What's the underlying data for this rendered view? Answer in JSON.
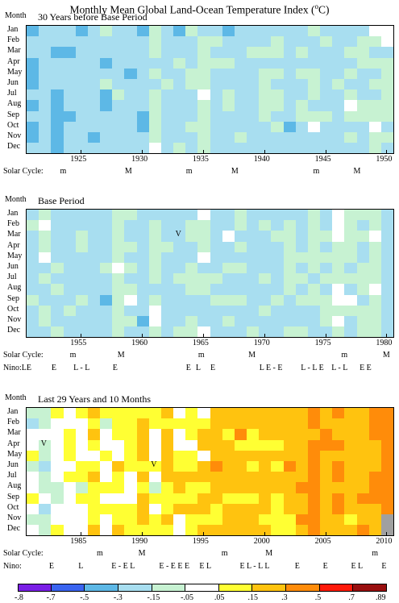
{
  "title_pre": "Monthly Mean Global Land-Ocean Temperature Index (",
  "title_sup": "o",
  "title_post": "C)",
  "month_header": "Month",
  "chart_data": [
    {
      "type": "heatmap",
      "title": "30 Years before Base Period",
      "rows": [
        "Jan",
        "Feb",
        "Mar",
        "Apr",
        "May",
        "Jun",
        "Jul",
        "Aug",
        "Sep",
        "Oct",
        "Nov",
        "Dec"
      ],
      "x_range": [
        1921,
        1950
      ],
      "xticks": [
        "1925",
        "1930",
        "1935",
        "1940",
        "1945",
        "1950"
      ],
      "annotation_rows": [
        {
          "label": "Solar Cycle:",
          "marks": [
            {
              "x": 1923.5,
              "t": "m"
            },
            {
              "x": 1928.8,
              "t": "M"
            },
            {
              "x": 1933.8,
              "t": "m"
            },
            {
              "x": 1937.5,
              "t": "M"
            },
            {
              "x": 1944.2,
              "t": "m"
            },
            {
              "x": 1947.5,
              "t": "M"
            }
          ]
        }
      ],
      "cell_markers": [],
      "seed": 11,
      "offset": -2.1,
      "trend": 1.1,
      "noise": 0.75
    },
    {
      "type": "heatmap",
      "title": "Base Period",
      "rows": [
        "Jan",
        "Feb",
        "Mar",
        "Apr",
        "May",
        "Jun",
        "Jul",
        "Aug",
        "Sep",
        "Oct",
        "Nov",
        "Dec"
      ],
      "x_range": [
        1951,
        1980
      ],
      "xticks": [
        "1955",
        "1960",
        "1965",
        "1970",
        "1975",
        "1980"
      ],
      "annotation_rows": [
        {
          "label": "Solar Cycle:",
          "marks": [
            {
              "x": 1954.3,
              "t": "m"
            },
            {
              "x": 1958.2,
              "t": "M"
            },
            {
              "x": 1964.8,
              "t": "m"
            },
            {
              "x": 1968.9,
              "t": "M"
            },
            {
              "x": 1976.5,
              "t": "m"
            },
            {
              "x": 1979.9,
              "t": "M"
            }
          ]
        },
        {
          "label": "Nino:LE",
          "marks": [
            {
              "x": 1952.8,
              "t": "E"
            },
            {
              "x": 1954.6,
              "t": "L - L"
            },
            {
              "x": 1957.8,
              "t": "E"
            },
            {
              "x": 1963.8,
              "t": "E"
            },
            {
              "x": 1964.6,
              "t": "L"
            },
            {
              "x": 1965.8,
              "t": "E"
            },
            {
              "x": 1969.8,
              "t": "L E - E"
            },
            {
              "x": 1973.2,
              "t": "L - L E"
            },
            {
              "x": 1975.7,
              "t": "L - L"
            },
            {
              "x": 1978.0,
              "t": "E E"
            }
          ]
        }
      ],
      "cell_markers": [
        {
          "year": 1963,
          "month": 3,
          "t": "V"
        }
      ],
      "seed": 23,
      "offset": -1.4,
      "trend": 0.3,
      "noise": 0.7
    },
    {
      "type": "heatmap",
      "title": "Last 29 Years and 10 Months",
      "rows": [
        "Jan",
        "Feb",
        "Mar",
        "Apr",
        "May",
        "Jun",
        "Jul",
        "Aug",
        "Sep",
        "Oct",
        "Nov",
        "Dec"
      ],
      "x_range": [
        1981,
        2010
      ],
      "xticks": [
        "1985",
        "1990",
        "1995",
        "2000",
        "2005",
        "2010"
      ],
      "annotation_rows": [
        {
          "label": "Solar Cycle:",
          "marks": [
            {
              "x": 1986.5,
              "t": "m"
            },
            {
              "x": 1989.9,
              "t": "M"
            },
            {
              "x": 1996.7,
              "t": "m"
            },
            {
              "x": 2000.3,
              "t": "M"
            },
            {
              "x": 2009.0,
              "t": "m"
            }
          ]
        },
        {
          "label": "Nino:",
          "marks": [
            {
              "x": 1982.6,
              "t": "E"
            },
            {
              "x": 1985.0,
              "t": "L"
            },
            {
              "x": 1987.7,
              "t": "E - E L"
            },
            {
              "x": 1991.6,
              "t": "E - E E E"
            },
            {
              "x": 1994.9,
              "t": "E L"
            },
            {
              "x": 1998.2,
              "t": "E L - L L"
            },
            {
              "x": 2002.7,
              "t": "E"
            },
            {
              "x": 2005.0,
              "t": "E"
            },
            {
              "x": 2007.3,
              "t": "E L"
            },
            {
              "x": 2009.8,
              "t": "E"
            }
          ]
        }
      ],
      "cell_markers": [
        {
          "year": 1982,
          "month": 4,
          "t": "V"
        },
        {
          "year": 1991,
          "month": 6,
          "t": "V"
        }
      ],
      "seed": 37,
      "offset": 0.0,
      "trend": 2.6,
      "noise": 0.8
    }
  ],
  "colorbar": {
    "labels": [
      "-.8",
      "-.7",
      "-.5",
      "-.3",
      "-.15",
      "-.05",
      ".05",
      ".15",
      ".3",
      ".5",
      ".7",
      ".89"
    ],
    "colors": [
      "#7a1fe6",
      "#3a64f0",
      "#5db8e6",
      "#a8def0",
      "#c7f2d2",
      "#ffffff",
      "#ffff33",
      "#ffc30f",
      "#ff8c0a",
      "#ff1a0a",
      "#990f0f"
    ]
  }
}
